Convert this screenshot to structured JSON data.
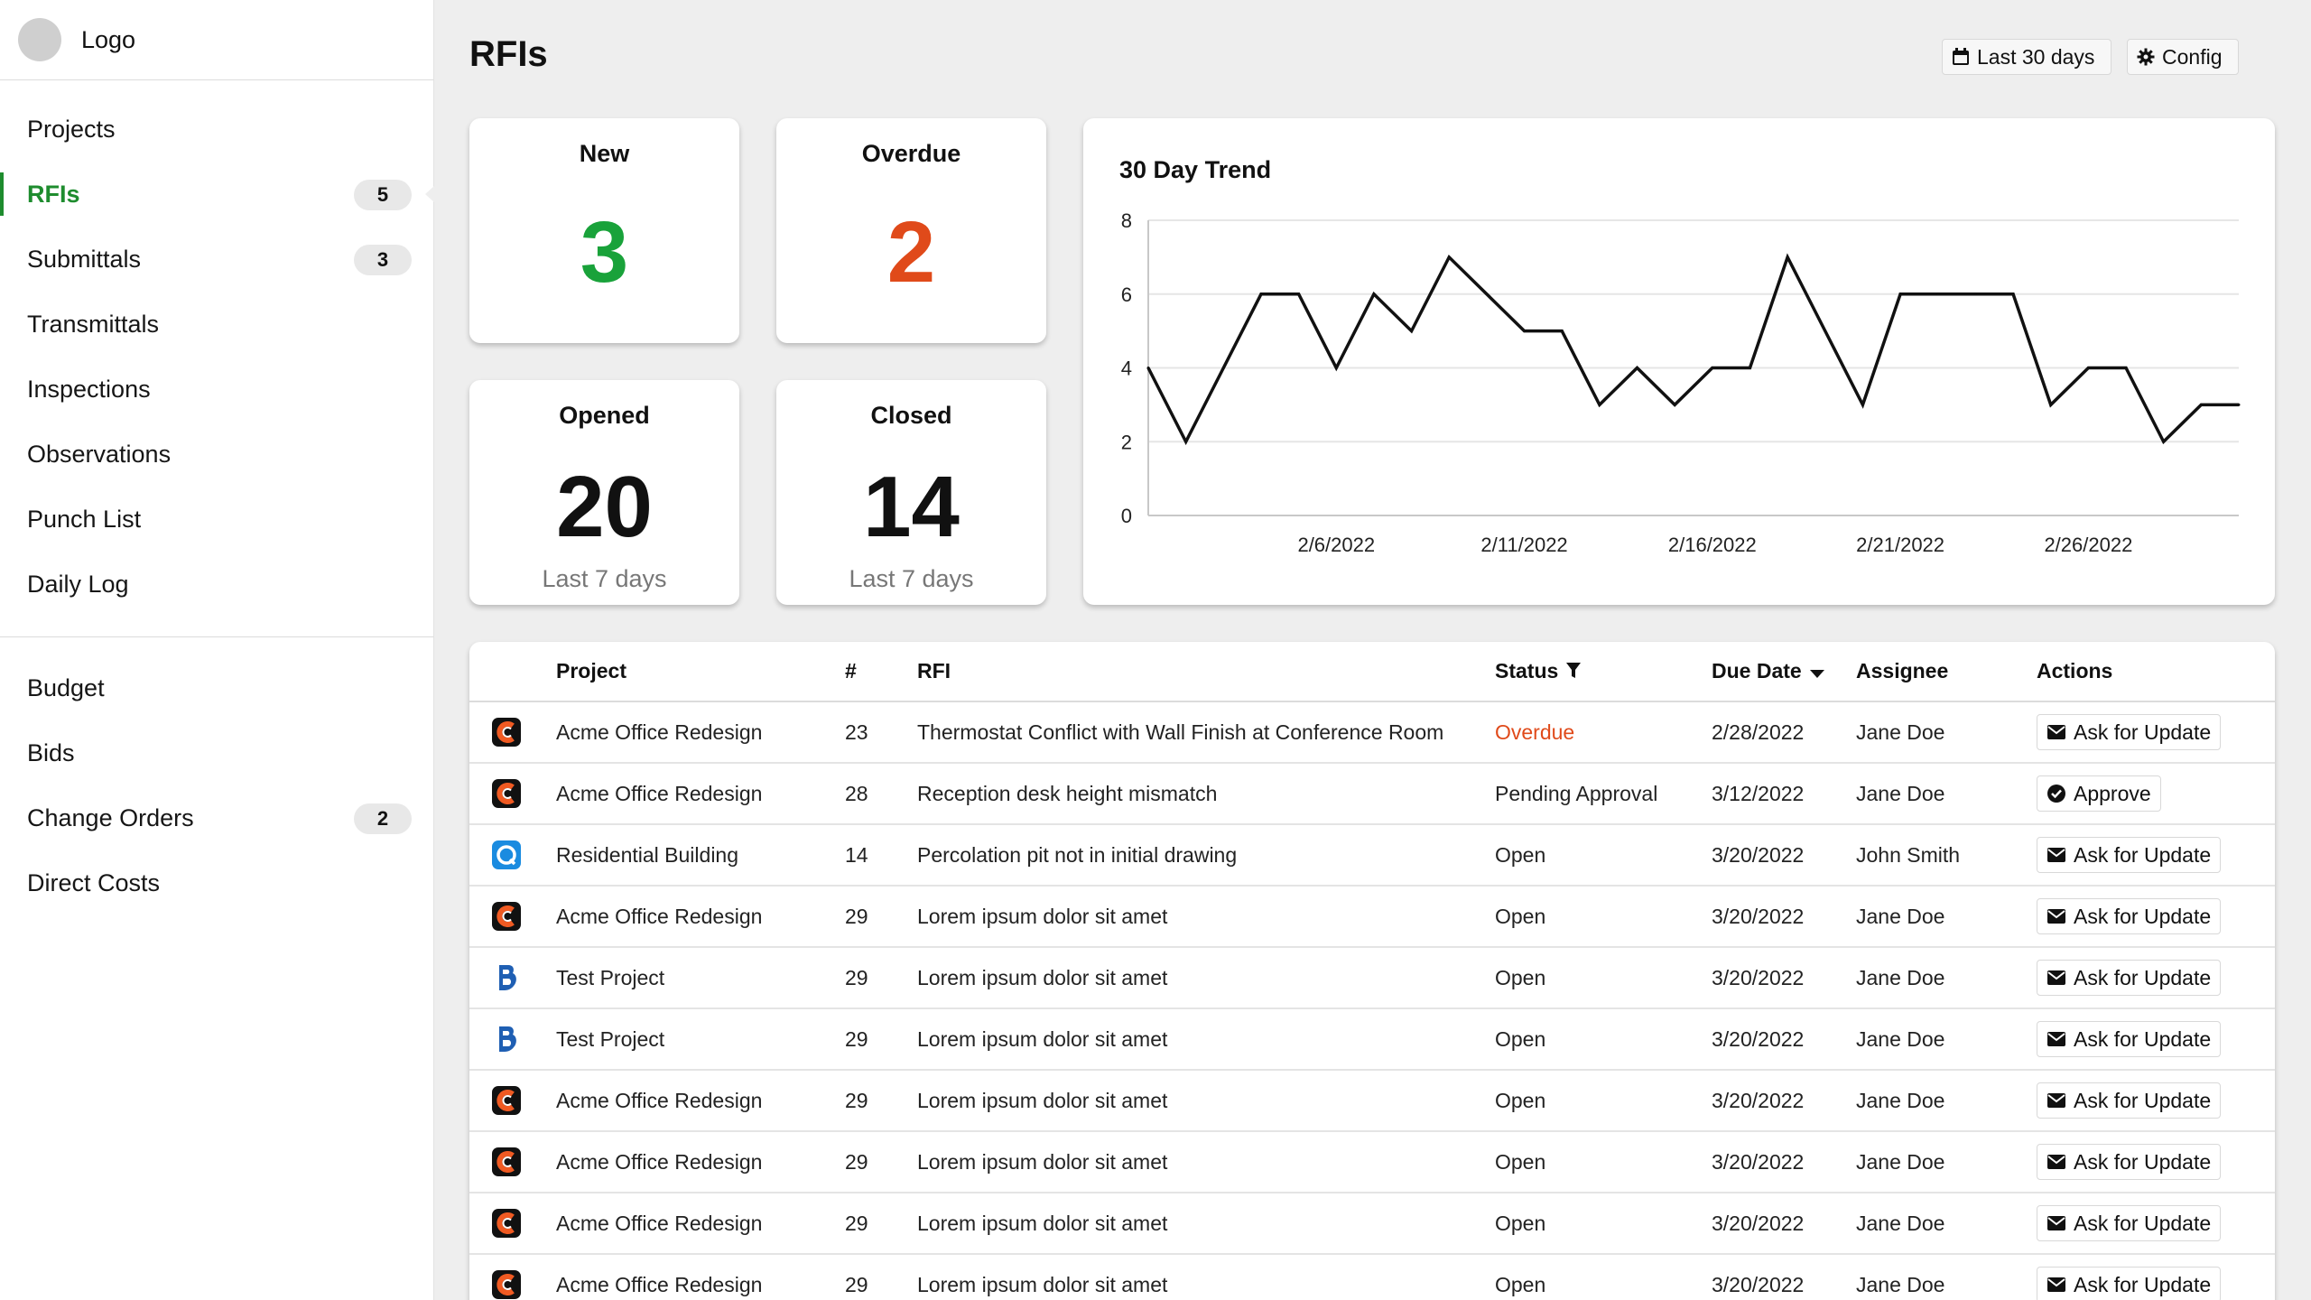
{
  "sidebar": {
    "logo_text": "Logo",
    "group1": [
      {
        "label": "Projects",
        "badge": null,
        "active": false
      },
      {
        "label": "RFIs",
        "badge": "5",
        "active": true
      },
      {
        "label": "Submittals",
        "badge": "3",
        "active": false
      },
      {
        "label": "Transmittals",
        "badge": null,
        "active": false
      },
      {
        "label": "Inspections",
        "badge": null,
        "active": false
      },
      {
        "label": "Observations",
        "badge": null,
        "active": false
      },
      {
        "label": "Punch List",
        "badge": null,
        "active": false
      },
      {
        "label": "Daily Log",
        "badge": null,
        "active": false
      }
    ],
    "group2": [
      {
        "label": "Budget",
        "badge": null,
        "active": false
      },
      {
        "label": "Bids",
        "badge": null,
        "active": false
      },
      {
        "label": "Change Orders",
        "badge": "2",
        "active": false
      },
      {
        "label": "Direct Costs",
        "badge": null,
        "active": false
      }
    ]
  },
  "header": {
    "title": "RFIs",
    "range_label": "Last 30 days",
    "config_label": "Config"
  },
  "stats": {
    "new": {
      "label": "New",
      "value": "3",
      "color": "#19a23a"
    },
    "overdue": {
      "label": "Overdue",
      "value": "2",
      "color": "#e04a1a"
    },
    "opened": {
      "label": "Opened",
      "value": "20",
      "sub": "Last 7 days"
    },
    "closed": {
      "label": "Closed",
      "value": "14",
      "sub": "Last 7 days"
    }
  },
  "chart_data": {
    "type": "line",
    "title": "30 Day Trend",
    "xlabel": "",
    "ylabel": "",
    "ylim": [
      0,
      8
    ],
    "yticks": [
      0,
      2,
      4,
      6,
      8
    ],
    "grid": true,
    "x": [
      "2/1/2022",
      "2/2/2022",
      "2/3/2022",
      "2/4/2022",
      "2/5/2022",
      "2/6/2022",
      "2/7/2022",
      "2/8/2022",
      "2/9/2022",
      "2/10/2022",
      "2/11/2022",
      "2/12/2022",
      "2/13/2022",
      "2/14/2022",
      "2/15/2022",
      "2/16/2022",
      "2/17/2022",
      "2/18/2022",
      "2/19/2022",
      "2/20/2022",
      "2/21/2022",
      "2/22/2022",
      "2/23/2022",
      "2/24/2022",
      "2/25/2022",
      "2/26/2022",
      "2/27/2022",
      "2/28/2022",
      "3/1/2022",
      "3/2/2022"
    ],
    "xtick_labels": [
      "2/6/2022",
      "2/11/2022",
      "2/16/2022",
      "2/21/2022",
      "2/26/2022"
    ],
    "series": [
      {
        "values": [
          4,
          2,
          4,
          6,
          6,
          4,
          6,
          5,
          7,
          6,
          5,
          5,
          3,
          4,
          3,
          4,
          4,
          7,
          5,
          3,
          6,
          6,
          6,
          6,
          3,
          4,
          4,
          2,
          3,
          3
        ],
        "color": "#111111"
      }
    ]
  },
  "table": {
    "headers": {
      "project": "Project",
      "num": "#",
      "rfi": "RFI",
      "status": "Status",
      "due": "Due Date",
      "assignee": "Assignee",
      "actions": "Actions"
    },
    "rows": [
      {
        "icon": "acme-c-icon",
        "project": "Acme Office Redesign",
        "num": "23",
        "rfi": "Thermostat Conflict with Wall Finish at Conference Room",
        "status": "Overdue",
        "due": "2/28/2022",
        "assignee": "Jane Doe",
        "action": "Ask for Update",
        "action_icon": "envelope-icon"
      },
      {
        "icon": "acme-c-icon",
        "project": "Acme Office Redesign",
        "num": "28",
        "rfi": "Reception desk height mismatch",
        "status": "Pending Approval",
        "due": "3/12/2022",
        "assignee": "Jane Doe",
        "action": "Approve",
        "action_icon": "check-circle-icon"
      },
      {
        "icon": "residential-q-icon",
        "project": "Residential Building",
        "num": "14",
        "rfi": "Percolation pit not in initial drawing",
        "status": "Open",
        "due": "3/20/2022",
        "assignee": "John Smith",
        "action": "Ask for Update",
        "action_icon": "envelope-icon"
      },
      {
        "icon": "acme-c-icon",
        "project": "Acme Office Redesign",
        "num": "29",
        "rfi": "Lorem ipsum dolor sit amet",
        "status": "Open",
        "due": "3/20/2022",
        "assignee": "Jane Doe",
        "action": "Ask for Update",
        "action_icon": "envelope-icon"
      },
      {
        "icon": "test-b-icon",
        "project": "Test Project",
        "num": "29",
        "rfi": "Lorem ipsum dolor sit amet",
        "status": "Open",
        "due": "3/20/2022",
        "assignee": "Jane Doe",
        "action": "Ask for Update",
        "action_icon": "envelope-icon"
      },
      {
        "icon": "test-b-icon",
        "project": "Test Project",
        "num": "29",
        "rfi": "Lorem ipsum dolor sit amet",
        "status": "Open",
        "due": "3/20/2022",
        "assignee": "Jane Doe",
        "action": "Ask for Update",
        "action_icon": "envelope-icon"
      },
      {
        "icon": "acme-c-icon",
        "project": "Acme Office Redesign",
        "num": "29",
        "rfi": "Lorem ipsum dolor sit amet",
        "status": "Open",
        "due": "3/20/2022",
        "assignee": "Jane Doe",
        "action": "Ask for Update",
        "action_icon": "envelope-icon"
      },
      {
        "icon": "acme-c-icon",
        "project": "Acme Office Redesign",
        "num": "29",
        "rfi": "Lorem ipsum dolor sit amet",
        "status": "Open",
        "due": "3/20/2022",
        "assignee": "Jane Doe",
        "action": "Ask for Update",
        "action_icon": "envelope-icon"
      },
      {
        "icon": "acme-c-icon",
        "project": "Acme Office Redesign",
        "num": "29",
        "rfi": "Lorem ipsum dolor sit amet",
        "status": "Open",
        "due": "3/20/2022",
        "assignee": "Jane Doe",
        "action": "Ask for Update",
        "action_icon": "envelope-icon"
      },
      {
        "icon": "acme-c-icon",
        "project": "Acme Office Redesign",
        "num": "29",
        "rfi": "Lorem ipsum dolor sit amet",
        "status": "Open",
        "due": "3/20/2022",
        "assignee": "Jane Doe",
        "action": "Ask for Update",
        "action_icon": "envelope-icon"
      }
    ]
  },
  "colors": {
    "accent": "#1e8c2e",
    "new": "#19a23a",
    "overdue": "#e04a1a",
    "acme_orange": "#f05a22",
    "residential_blue": "#1a8be0",
    "test_blue": "#1f5fb3"
  }
}
